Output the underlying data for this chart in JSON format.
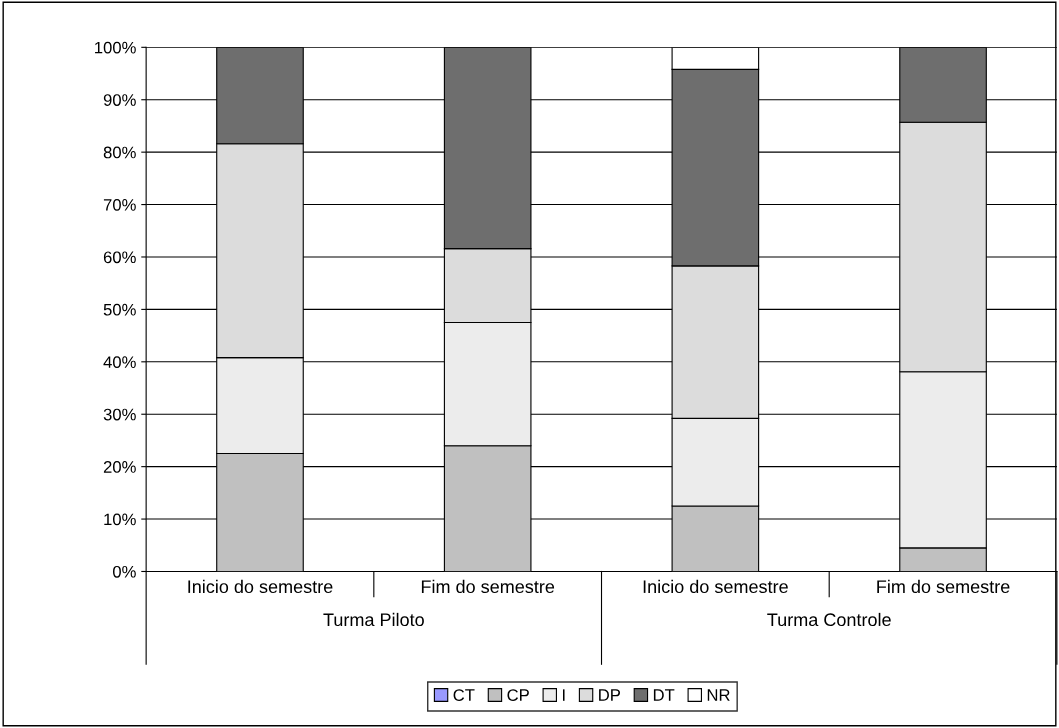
{
  "chart_data": {
    "type": "bar",
    "stacked": true,
    "categories": [
      "Inicio do semestre",
      "Fim do semestre",
      "Inicio do semestre",
      "Fim do semestre"
    ],
    "annotations": [
      "Turma Piloto",
      "Turma Controle"
    ],
    "series": [
      {
        "name": "CT",
        "color": "#9999ff",
        "values": [
          0,
          0,
          0,
          0
        ]
      },
      {
        "name": "CP",
        "color": "#c0c0c0",
        "values": [
          22.5,
          24,
          12.5,
          4.5
        ]
      },
      {
        "name": "I",
        "color": "#ececec",
        "values": [
          18.3,
          23.5,
          16.7,
          33.6
        ]
      },
      {
        "name": "DP",
        "color": "#dcdcdc",
        "values": [
          40.8,
          14.1,
          29.1,
          47.6
        ]
      },
      {
        "name": "DT",
        "color": "#6e6e6e",
        "values": [
          18.4,
          38.4,
          37.5,
          14.3
        ]
      },
      {
        "name": "NR",
        "color": "#ffffff",
        "values": [
          0,
          0,
          4.2,
          0
        ]
      }
    ],
    "ylim": [
      0,
      100
    ],
    "yticks": [
      {
        "value": 0,
        "label": "0%"
      },
      {
        "value": 10,
        "label": "10%"
      },
      {
        "value": 20,
        "label": "20%"
      },
      {
        "value": 30,
        "label": "30%"
      },
      {
        "value": 40,
        "label": "40%"
      },
      {
        "value": 50,
        "label": "50%"
      },
      {
        "value": 60,
        "label": "60%"
      },
      {
        "value": 70,
        "label": "70%"
      },
      {
        "value": 80,
        "label": "80%"
      },
      {
        "value": 90,
        "label": "90%"
      },
      {
        "value": 100,
        "label": "100%"
      }
    ],
    "grid": "y",
    "legend": "bottom"
  }
}
